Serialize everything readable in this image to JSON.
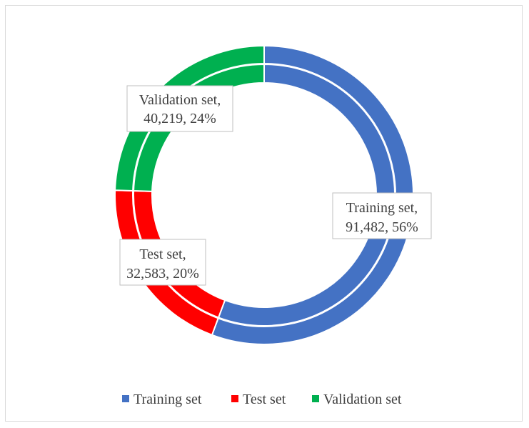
{
  "chart_data": {
    "type": "doughnut",
    "title": "",
    "rings": 2,
    "series": [
      {
        "values": [
          91482,
          32583,
          40219
        ]
      },
      {
        "values": [
          91482,
          32583,
          40219
        ]
      }
    ],
    "categories": [
      "Training set",
      "Test set",
      "Validation set"
    ],
    "values": [
      91482,
      32583,
      40219
    ],
    "percents": [
      "56%",
      "20%",
      "24%"
    ],
    "data_labels": [
      {
        "line1": "Training set,",
        "line2": "91,482, 56%"
      },
      {
        "line1": "Test set,",
        "line2": "32,583, 20%"
      },
      {
        "line1": "Validation set,",
        "line2": "40,219, 24%"
      }
    ],
    "colors": [
      "#4472c4",
      "#ff0000",
      "#00b050"
    ],
    "legend_position": "bottom",
    "legend": [
      "Training set",
      "Test set",
      "Validation set"
    ]
  }
}
